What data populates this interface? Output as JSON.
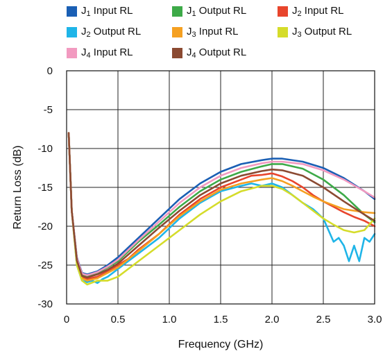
{
  "chart_data": {
    "type": "line",
    "xlabel": "Frequency (GHz)",
    "ylabel": "Return Loss (dB)",
    "xlim": [
      0,
      3.0
    ],
    "ylim": [
      -30,
      0
    ],
    "x_ticks": [
      "0",
      "0.5",
      "1.0",
      "1.5",
      "2.0",
      "2.5",
      "3.0"
    ],
    "y_ticks": [
      "0",
      "-5",
      "-10",
      "-15",
      "-20",
      "-25",
      "-30"
    ],
    "grid": true,
    "legend_position": "top",
    "series": [
      {
        "name": "J1 Input RL",
        "label_main": "J",
        "label_sub": "1",
        "label_rest": " Input RL",
        "color": "#1a5fb4",
        "x": [
          0.02,
          0.05,
          0.1,
          0.15,
          0.2,
          0.3,
          0.4,
          0.5,
          0.7,
          0.9,
          1.1,
          1.3,
          1.5,
          1.7,
          1.9,
          2.0,
          2.1,
          2.3,
          2.5,
          2.7,
          2.9,
          3.0
        ],
        "y": [
          -8,
          -18,
          -24,
          -26,
          -26.2,
          -25.8,
          -25,
          -24,
          -21.5,
          -19,
          -16.5,
          -14.5,
          -13,
          -12,
          -11.5,
          -11.3,
          -11.3,
          -11.7,
          -12.5,
          -13.8,
          -15.5,
          -16.5
        ]
      },
      {
        "name": "J1 Output RL",
        "label_main": "J",
        "label_sub": "1",
        "label_rest": " Output RL",
        "color": "#3daa48",
        "x": [
          0.02,
          0.05,
          0.1,
          0.15,
          0.2,
          0.3,
          0.4,
          0.5,
          0.7,
          0.9,
          1.1,
          1.3,
          1.5,
          1.7,
          1.9,
          2.0,
          2.1,
          2.3,
          2.5,
          2.7,
          2.9,
          3.0
        ],
        "y": [
          -8,
          -18,
          -24.2,
          -26.2,
          -26.5,
          -26,
          -25.3,
          -24.5,
          -22,
          -19.8,
          -17.5,
          -15.5,
          -14,
          -13,
          -12.3,
          -12,
          -12,
          -12.6,
          -14,
          -16,
          -18.5,
          -19.5
        ]
      },
      {
        "name": "J2 Input RL",
        "label_main": "J",
        "label_sub": "2",
        "label_rest": " Input RL",
        "color": "#e8452c",
        "x": [
          0.02,
          0.05,
          0.1,
          0.15,
          0.2,
          0.3,
          0.4,
          0.5,
          0.6,
          0.7,
          0.9,
          1.1,
          1.3,
          1.5,
          1.7,
          1.8,
          1.9,
          2.0,
          2.1,
          2.2,
          2.3,
          2.4,
          2.5,
          2.6,
          2.7,
          2.8,
          2.9,
          3.0
        ],
        "y": [
          -8,
          -18,
          -24.5,
          -26.5,
          -26.8,
          -26.5,
          -25.8,
          -25,
          -24.2,
          -23,
          -21,
          -18.5,
          -16.5,
          -15,
          -14,
          -13.5,
          -13.4,
          -13.2,
          -13.6,
          -14.2,
          -15,
          -16,
          -16.8,
          -17.5,
          -18.2,
          -18.8,
          -19.3,
          -20
        ]
      },
      {
        "name": "J2 Output RL",
        "label_main": "J",
        "label_sub": "2",
        "label_rest": " Output RL",
        "color": "#1fb5e8",
        "x": [
          0.02,
          0.05,
          0.1,
          0.15,
          0.2,
          0.25,
          0.3,
          0.35,
          0.4,
          0.5,
          0.6,
          0.7,
          0.9,
          1.1,
          1.3,
          1.5,
          1.7,
          1.8,
          1.9,
          2.0,
          2.1,
          2.2,
          2.3,
          2.4,
          2.5,
          2.55,
          2.6,
          2.65,
          2.7,
          2.75,
          2.8,
          2.85,
          2.9,
          2.95,
          3.0
        ],
        "y": [
          -8,
          -18,
          -25,
          -27,
          -27.2,
          -27,
          -27.3,
          -26.8,
          -26.5,
          -25.5,
          -24.5,
          -23.5,
          -21.5,
          -19,
          -17,
          -15.5,
          -14.8,
          -14.5,
          -14.8,
          -14.5,
          -15,
          -16,
          -17,
          -17.8,
          -19,
          -20.5,
          -22,
          -21.5,
          -22.5,
          -24.5,
          -22.5,
          -24.5,
          -21.5,
          -22,
          -21
        ]
      },
      {
        "name": "J3 Input RL",
        "label_main": "J",
        "label_sub": "3",
        "label_rest": " Input RL",
        "color": "#f5a021",
        "x": [
          0.02,
          0.05,
          0.1,
          0.15,
          0.2,
          0.3,
          0.4,
          0.5,
          0.7,
          0.9,
          1.1,
          1.3,
          1.5,
          1.7,
          1.9,
          2.0,
          2.1,
          2.2,
          2.3,
          2.4,
          2.5,
          2.6,
          2.7,
          2.8,
          2.9,
          3.0
        ],
        "y": [
          -8,
          -18,
          -24.6,
          -26.7,
          -27,
          -26.7,
          -26,
          -25.3,
          -23.2,
          -21,
          -18.7,
          -16.8,
          -15.3,
          -14.5,
          -14,
          -13.8,
          -14.2,
          -14.8,
          -15.5,
          -16.2,
          -16.8,
          -17.3,
          -17.8,
          -18,
          -18.2,
          -18.3
        ]
      },
      {
        "name": "J3 Output RL",
        "label_main": "J",
        "label_sub": "3",
        "label_rest": " Output RL",
        "color": "#d5dc2a",
        "x": [
          0.02,
          0.05,
          0.1,
          0.15,
          0.2,
          0.3,
          0.4,
          0.5,
          0.6,
          0.7,
          0.9,
          1.1,
          1.3,
          1.5,
          1.7,
          1.9,
          2.0,
          2.1,
          2.2,
          2.3,
          2.4,
          2.5,
          2.6,
          2.7,
          2.8,
          2.9,
          3.0
        ],
        "y": [
          -8,
          -18,
          -25,
          -27,
          -27.5,
          -27,
          -27,
          -26.5,
          -25.5,
          -24.5,
          -22.5,
          -20.5,
          -18.5,
          -16.8,
          -15.5,
          -14.8,
          -14.8,
          -15.2,
          -16,
          -17,
          -18,
          -19,
          -19.8,
          -20.5,
          -20.8,
          -20.5,
          -19
        ]
      },
      {
        "name": "J4 Input RL",
        "label_main": "J",
        "label_sub": "4",
        "label_rest": " Input RL",
        "color": "#f29ac0",
        "x": [
          0.02,
          0.05,
          0.1,
          0.15,
          0.2,
          0.3,
          0.4,
          0.5,
          0.7,
          0.9,
          1.1,
          1.3,
          1.5,
          1.7,
          1.9,
          2.0,
          2.1,
          2.3,
          2.5,
          2.7,
          2.9,
          3.0
        ],
        "y": [
          -8,
          -18,
          -24.1,
          -26.1,
          -26.3,
          -25.9,
          -25.2,
          -24.3,
          -21.8,
          -19.4,
          -17,
          -15,
          -13.5,
          -12.5,
          -11.9,
          -11.7,
          -11.7,
          -12,
          -12.8,
          -14,
          -15.5,
          -16.3
        ]
      },
      {
        "name": "J4 Output RL",
        "label_main": "J",
        "label_sub": "4",
        "label_rest": " Output RL",
        "color": "#8b4a32",
        "x": [
          0.02,
          0.05,
          0.1,
          0.15,
          0.2,
          0.3,
          0.4,
          0.5,
          0.7,
          0.9,
          1.1,
          1.3,
          1.5,
          1.7,
          1.9,
          2.0,
          2.1,
          2.3,
          2.5,
          2.7,
          2.9,
          3.0
        ],
        "y": [
          -8,
          -18,
          -24.4,
          -26.4,
          -26.6,
          -26.2,
          -25.6,
          -24.8,
          -22.5,
          -20.2,
          -18,
          -16,
          -14.5,
          -13.5,
          -12.9,
          -12.7,
          -12.8,
          -13.5,
          -15,
          -16.8,
          -18.5,
          -19.3
        ]
      }
    ]
  }
}
